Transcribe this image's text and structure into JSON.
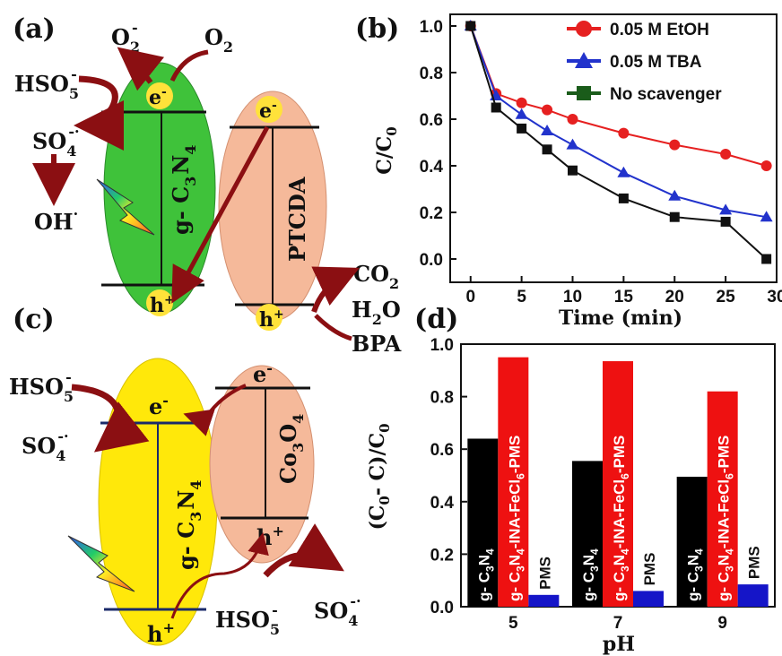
{
  "panels": {
    "a": {
      "label": "(a)",
      "o2_minus": "O",
      "o2_minus_sub": "2",
      "o2_minus_sup": "-",
      "o2": "O",
      "o2_sub": "2",
      "hso5": "HSO",
      "hso5_sub": "5",
      "hso5_sup": "-",
      "so4": "SO",
      "so4_sub": "4",
      "so4_sup": "-·",
      "oh": "OH",
      "oh_sup": "·",
      "electron": "e",
      "electron_sup": "-",
      "hole": "h",
      "hole_sup": "+",
      "gcn": "g- C",
      "gcn_sub1": "3",
      "gcn_n": "N",
      "gcn_sub2": "4",
      "ptcda": "PTCDA",
      "co2": "CO",
      "co2_sub": "2",
      "h2o": "H",
      "h2o_sub": "2",
      "h2o_o": "O",
      "bpa": "BPA",
      "colors": {
        "gcn_fill": "#3fc23a",
        "ptcda_fill": "#f5b99a",
        "arrow": "#8b0f12",
        "electron_dot": "#ffe23a"
      }
    },
    "c": {
      "label": "(c)",
      "hso5": "HSO",
      "hso5_sub": "5",
      "hso5_sup": "-",
      "so4": "SO",
      "so4_sub": "4",
      "so4_sup": "-·",
      "electron": "e",
      "electron_sup": "-",
      "hole": "h",
      "hole_sup": "+",
      "gcn": "g- C",
      "gcn_sub1": "3",
      "gcn_n": "N",
      "gcn_sub2": "4",
      "co3o4": "Co",
      "co3o4_sub1": "3",
      "co3o4_o": "O",
      "co3o4_sub2": "4",
      "hso5_bottom": "HSO",
      "so4_bottom": "SO",
      "colors": {
        "gcn_fill": "#ffe80a",
        "co3o4_fill": "#f5b99a",
        "arrow": "#8b0f12"
      }
    }
  },
  "chart_data": [
    {
      "panel": "(b)",
      "type": "line",
      "xlabel": "Time (min)",
      "ylabel": "C/C",
      "ylabel_sub": "0",
      "xlim": [
        -2,
        30
      ],
      "ylim": [
        -0.1,
        1.05
      ],
      "xticks": [
        0,
        5,
        10,
        15,
        20,
        25,
        30
      ],
      "yticks": [
        0.0,
        0.2,
        0.4,
        0.6,
        0.8,
        1.0
      ],
      "series": [
        {
          "name": "0.05 M EtOH",
          "color": "#e62020",
          "marker": "circle",
          "x": [
            0,
            2.5,
            5,
            7.5,
            10,
            15,
            20,
            25,
            29
          ],
          "y": [
            1.0,
            0.71,
            0.67,
            0.64,
            0.6,
            0.54,
            0.49,
            0.45,
            0.4
          ]
        },
        {
          "name": "0.05 M TBA",
          "color": "#2233cc",
          "marker": "triangle",
          "x": [
            0,
            2.5,
            5,
            7.5,
            10,
            15,
            20,
            25,
            29
          ],
          "y": [
            1.0,
            0.7,
            0.62,
            0.55,
            0.49,
            0.37,
            0.27,
            0.21,
            0.18
          ]
        },
        {
          "name": "No scavenger",
          "color": "#111111",
          "legend_color": "#1a5c1a",
          "marker": "square",
          "x": [
            0,
            2.5,
            5,
            7.5,
            10,
            15,
            20,
            25,
            29
          ],
          "y": [
            1.0,
            0.65,
            0.56,
            0.47,
            0.38,
            0.26,
            0.18,
            0.16,
            0.0
          ]
        }
      ],
      "legend_position": "top-right"
    },
    {
      "panel": "(d)",
      "type": "bar",
      "xlabel": "pH",
      "ylabel": "(C",
      "ylabel_full": "(C0- C)/C0",
      "categories": [
        "5",
        "7",
        "9"
      ],
      "ylim": [
        0,
        1.0
      ],
      "yticks": [
        0.0,
        0.2,
        0.4,
        0.6,
        0.8,
        1.0
      ],
      "series": [
        {
          "name": "g- C3N4",
          "color": "#000000",
          "values": [
            0.64,
            0.555,
            0.495
          ]
        },
        {
          "name": "g- C3N4-INA-FeCl6-PMS",
          "color": "#ee1111",
          "values": [
            0.95,
            0.935,
            0.82
          ]
        },
        {
          "name": "PMS",
          "color": "#1515c8",
          "values": [
            0.045,
            0.06,
            0.085
          ]
        }
      ],
      "bar_label_gcn": "g- C",
      "bar_label_gcn_n": "N",
      "bar_label_red_a": "g- C",
      "bar_label_red_b": "N",
      "bar_label_red_c": "-INA-FeCl",
      "bar_label_red_d": "-PMS",
      "bar_label_sub3": "3",
      "bar_label_sub4": "4",
      "bar_label_sub6": "6",
      "bar_label_pms": "PMS"
    }
  ]
}
